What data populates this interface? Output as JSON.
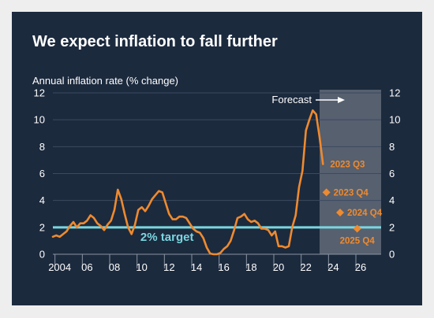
{
  "chart_data": {
    "type": "line",
    "title": "We expect inflation to fall further",
    "ylabel": "Annual inflation rate (% change)",
    "xlabel": "",
    "ylim": [
      0,
      12
    ],
    "yticks": [
      0,
      2,
      4,
      6,
      8,
      10,
      12
    ],
    "xlim": [
      2003.5,
      2027.5
    ],
    "xticks": [
      {
        "x": 2004,
        "label": "2004"
      },
      {
        "x": 2006,
        "label": "06"
      },
      {
        "x": 2008,
        "label": "08"
      },
      {
        "x": 2010,
        "label": "10"
      },
      {
        "x": 2012,
        "label": "12"
      },
      {
        "x": 2014,
        "label": "14"
      },
      {
        "x": 2016,
        "label": "16"
      },
      {
        "x": 2018,
        "label": "18"
      },
      {
        "x": 2020,
        "label": "20"
      },
      {
        "x": 2022,
        "label": "22"
      },
      {
        "x": 2024,
        "label": "24"
      },
      {
        "x": 2026,
        "label": "26"
      }
    ],
    "grid": true,
    "target": {
      "value": 2,
      "label": "2% target",
      "color": "#7ad6e0"
    },
    "forecast_region": {
      "from": 2023.0,
      "to": 2027.5,
      "label": "Forecast"
    },
    "series": [
      {
        "color": "#ef8a2e",
        "points": [
          [
            2003.5,
            1.3
          ],
          [
            2003.75,
            1.4
          ],
          [
            2004.0,
            1.3
          ],
          [
            2004.25,
            1.5
          ],
          [
            2004.5,
            1.7
          ],
          [
            2004.75,
            2.1
          ],
          [
            2005.0,
            2.4
          ],
          [
            2005.25,
            2.0
          ],
          [
            2005.5,
            2.3
          ],
          [
            2005.75,
            2.3
          ],
          [
            2006.0,
            2.5
          ],
          [
            2006.25,
            2.9
          ],
          [
            2006.5,
            2.7
          ],
          [
            2006.75,
            2.3
          ],
          [
            2007.0,
            2.1
          ],
          [
            2007.25,
            1.8
          ],
          [
            2007.5,
            2.2
          ],
          [
            2007.75,
            2.5
          ],
          [
            2008.0,
            3.3
          ],
          [
            2008.25,
            4.8
          ],
          [
            2008.5,
            4.1
          ],
          [
            2008.75,
            3.0
          ],
          [
            2009.0,
            2.0
          ],
          [
            2009.25,
            1.5
          ],
          [
            2009.5,
            2.2
          ],
          [
            2009.75,
            3.3
          ],
          [
            2010.0,
            3.5
          ],
          [
            2010.25,
            3.2
          ],
          [
            2010.5,
            3.6
          ],
          [
            2010.75,
            4.1
          ],
          [
            2011.0,
            4.4
          ],
          [
            2011.25,
            4.7
          ],
          [
            2011.5,
            4.6
          ],
          [
            2011.75,
            3.8
          ],
          [
            2012.0,
            3.0
          ],
          [
            2012.25,
            2.6
          ],
          [
            2012.5,
            2.6
          ],
          [
            2012.75,
            2.8
          ],
          [
            2013.0,
            2.8
          ],
          [
            2013.25,
            2.7
          ],
          [
            2013.5,
            2.3
          ],
          [
            2013.75,
            1.9
          ],
          [
            2014.0,
            1.7
          ],
          [
            2014.25,
            1.6
          ],
          [
            2014.5,
            1.2
          ],
          [
            2014.75,
            0.5
          ],
          [
            2015.0,
            0.05
          ],
          [
            2015.25,
            0.0
          ],
          [
            2015.5,
            0.0
          ],
          [
            2015.75,
            0.1
          ],
          [
            2016.0,
            0.4
          ],
          [
            2016.25,
            0.6
          ],
          [
            2016.5,
            1.0
          ],
          [
            2016.75,
            1.8
          ],
          [
            2017.0,
            2.7
          ],
          [
            2017.25,
            2.8
          ],
          [
            2017.5,
            3.0
          ],
          [
            2017.75,
            2.6
          ],
          [
            2018.0,
            2.4
          ],
          [
            2018.25,
            2.5
          ],
          [
            2018.5,
            2.3
          ],
          [
            2018.75,
            1.9
          ],
          [
            2019.0,
            1.9
          ],
          [
            2019.25,
            1.8
          ],
          [
            2019.5,
            1.4
          ],
          [
            2019.75,
            1.7
          ],
          [
            2020.0,
            0.6
          ],
          [
            2020.25,
            0.6
          ],
          [
            2020.5,
            0.5
          ],
          [
            2020.75,
            0.6
          ],
          [
            2021.0,
            2.0
          ],
          [
            2021.25,
            2.9
          ],
          [
            2021.5,
            5.0
          ],
          [
            2021.75,
            6.2
          ],
          [
            2022.0,
            9.2
          ],
          [
            2022.25,
            10.0
          ],
          [
            2022.5,
            10.7
          ],
          [
            2022.75,
            10.4
          ],
          [
            2023.0,
            8.7
          ],
          [
            2023.25,
            6.7
          ]
        ]
      }
    ],
    "forecast_points": [
      {
        "x": 2023.5,
        "y": 4.6,
        "label": "2023 Q4"
      },
      {
        "x": 2024.5,
        "y": 3.1,
        "label": "2024 Q4"
      },
      {
        "x": 2025.75,
        "y": 1.9,
        "label": "2025 Q4"
      }
    ],
    "annotations": [
      {
        "x": 2023.25,
        "y": 6.7,
        "label": "2023 Q3"
      }
    ]
  }
}
